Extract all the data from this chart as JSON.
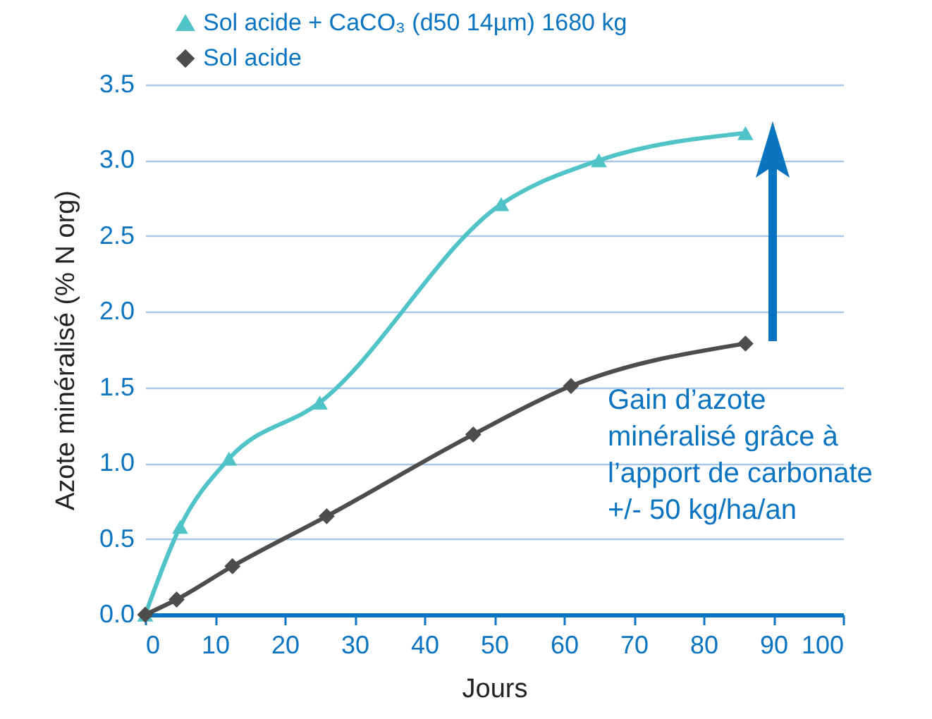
{
  "chart_data": {
    "type": "line",
    "xlabel": "Jours",
    "ylabel": "Azote minéralisé (% N org)",
    "xlim": [
      0,
      100
    ],
    "xticks": [
      0,
      10,
      20,
      30,
      40,
      50,
      60,
      70,
      80,
      90,
      100
    ],
    "ylim": [
      0,
      3.5
    ],
    "yticks": [
      {
        "value": 0,
        "label": "0.0"
      },
      0.5,
      {
        "value": 1,
        "label": "1.0"
      },
      1.5,
      {
        "value": 2,
        "label": "2.0"
      },
      2.5,
      {
        "value": 3,
        "label": "3.0"
      },
      3.5
    ],
    "series": [
      {
        "name": "Sol acide + CaCO₃ (d50 14µm) 1680 kg",
        "color": "#4fc3c8",
        "marker": "triangle",
        "x": [
          0,
          5,
          12,
          25,
          51,
          65,
          86
        ],
        "values": [
          0,
          0.58,
          1.03,
          1.4,
          2.71,
          3.0,
          3.18
        ]
      },
      {
        "name": "Sol acide",
        "color": "#4d4d4d",
        "marker": "diamond",
        "x": [
          0,
          4.5,
          12.5,
          26,
          47,
          61,
          86
        ],
        "values": [
          0,
          0.1,
          0.32,
          0.65,
          1.19,
          1.51,
          1.79
        ]
      }
    ],
    "annotations": [
      "Gain d’azote",
      "minéralisé grâce à",
      "l’apport de carbonate",
      "+/- 50 kg/ha/an"
    ],
    "grid": "y",
    "legend": "top left"
  }
}
